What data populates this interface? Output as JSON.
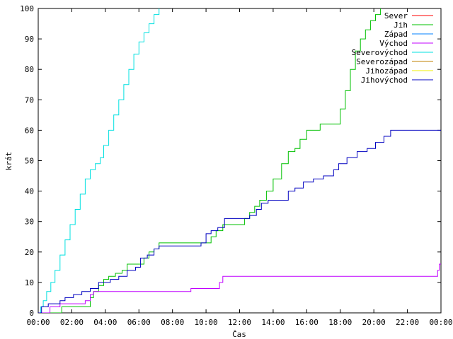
{
  "chart_data": {
    "type": "line",
    "title": "",
    "xlabel": "Čas",
    "ylabel": "krát",
    "xlim": [
      0,
      24
    ],
    "ylim": [
      0,
      100
    ],
    "x_ticks": [
      "00:00",
      "02:00",
      "04:00",
      "06:00",
      "08:00",
      "10:00",
      "12:00",
      "14:00",
      "16:00",
      "18:00",
      "20:00",
      "22:00",
      "00:00"
    ],
    "y_ticks": [
      0,
      10,
      20,
      30,
      40,
      50,
      60,
      70,
      80,
      90,
      100
    ],
    "legend_position": "top-right",
    "series": [
      {
        "name": "Sever",
        "color": "#ff0000",
        "points": []
      },
      {
        "name": "Jih",
        "color": "#00c000",
        "points": [
          [
            0.0,
            0
          ],
          [
            1.2,
            0
          ],
          [
            1.4,
            2
          ],
          [
            2.8,
            2
          ],
          [
            3.1,
            5
          ],
          [
            3.3,
            7
          ],
          [
            3.6,
            9
          ],
          [
            3.9,
            11
          ],
          [
            4.2,
            12
          ],
          [
            4.6,
            13
          ],
          [
            5.0,
            14
          ],
          [
            5.3,
            16
          ],
          [
            6.0,
            16
          ],
          [
            6.3,
            18
          ],
          [
            6.6,
            20
          ],
          [
            6.9,
            21
          ],
          [
            7.2,
            23
          ],
          [
            10.0,
            23
          ],
          [
            10.3,
            25
          ],
          [
            10.6,
            27
          ],
          [
            11.0,
            29
          ],
          [
            12.0,
            29
          ],
          [
            12.3,
            31
          ],
          [
            12.6,
            33
          ],
          [
            12.9,
            35
          ],
          [
            13.2,
            37
          ],
          [
            13.6,
            40
          ],
          [
            14.0,
            44
          ],
          [
            14.5,
            49
          ],
          [
            14.9,
            53
          ],
          [
            15.3,
            54
          ],
          [
            15.6,
            57
          ],
          [
            16.0,
            60
          ],
          [
            16.6,
            60
          ],
          [
            16.8,
            62
          ],
          [
            17.7,
            62
          ],
          [
            18.0,
            67
          ],
          [
            18.3,
            73
          ],
          [
            18.6,
            80
          ],
          [
            18.9,
            86
          ],
          [
            19.2,
            90
          ],
          [
            19.5,
            93
          ],
          [
            19.8,
            96
          ],
          [
            20.1,
            98
          ],
          [
            20.4,
            100
          ]
        ]
      },
      {
        "name": "Západ",
        "color": "#0080ff",
        "points": []
      },
      {
        "name": "Východ",
        "color": "#c000ff",
        "points": [
          [
            0.0,
            0
          ],
          [
            0.5,
            0
          ],
          [
            0.7,
            2
          ],
          [
            1.3,
            3
          ],
          [
            2.8,
            4
          ],
          [
            3.1,
            6
          ],
          [
            3.3,
            7
          ],
          [
            8.9,
            7
          ],
          [
            9.1,
            8
          ],
          [
            10.7,
            8
          ],
          [
            10.8,
            10
          ],
          [
            11.0,
            12
          ],
          [
            23.7,
            12
          ],
          [
            23.8,
            14
          ],
          [
            23.9,
            16
          ],
          [
            24.0,
            16
          ]
        ]
      },
      {
        "name": "Severovýchod",
        "color": "#00e0e0",
        "points": [
          [
            0.0,
            0
          ],
          [
            0.15,
            2
          ],
          [
            0.3,
            4
          ],
          [
            0.5,
            7
          ],
          [
            0.75,
            10
          ],
          [
            1.0,
            14
          ],
          [
            1.3,
            19
          ],
          [
            1.6,
            24
          ],
          [
            1.9,
            29
          ],
          [
            2.2,
            34
          ],
          [
            2.5,
            39
          ],
          [
            2.8,
            44
          ],
          [
            3.1,
            47
          ],
          [
            3.4,
            49
          ],
          [
            3.7,
            51
          ],
          [
            3.9,
            55
          ],
          [
            4.2,
            60
          ],
          [
            4.5,
            65
          ],
          [
            4.8,
            70
          ],
          [
            5.1,
            75
          ],
          [
            5.4,
            80
          ],
          [
            5.7,
            85
          ],
          [
            6.0,
            89
          ],
          [
            6.3,
            92
          ],
          [
            6.6,
            95
          ],
          [
            6.9,
            98
          ],
          [
            7.2,
            100
          ]
        ]
      },
      {
        "name": "Severozápad",
        "color": "#c08000",
        "points": []
      },
      {
        "name": "Jihozápad",
        "color": "#f0f000",
        "points": []
      },
      {
        "name": "Jihovýchod",
        "color": "#0000c0",
        "points": [
          [
            0.0,
            0
          ],
          [
            0.2,
            2
          ],
          [
            0.6,
            3
          ],
          [
            1.3,
            4
          ],
          [
            1.6,
            5
          ],
          [
            2.1,
            6
          ],
          [
            2.6,
            7
          ],
          [
            3.1,
            8
          ],
          [
            3.6,
            10
          ],
          [
            4.3,
            11
          ],
          [
            4.8,
            12
          ],
          [
            5.3,
            14
          ],
          [
            5.8,
            15
          ],
          [
            6.1,
            18
          ],
          [
            6.5,
            19
          ],
          [
            6.9,
            21
          ],
          [
            7.2,
            22
          ],
          [
            9.7,
            23
          ],
          [
            10.0,
            26
          ],
          [
            10.3,
            27
          ],
          [
            10.7,
            28
          ],
          [
            11.1,
            31
          ],
          [
            12.2,
            31
          ],
          [
            12.6,
            32
          ],
          [
            13.0,
            34
          ],
          [
            13.3,
            36
          ],
          [
            13.7,
            37
          ],
          [
            14.5,
            37
          ],
          [
            14.9,
            40
          ],
          [
            15.3,
            41
          ],
          [
            15.8,
            43
          ],
          [
            16.4,
            44
          ],
          [
            17.0,
            45
          ],
          [
            17.6,
            47
          ],
          [
            17.9,
            49
          ],
          [
            18.4,
            51
          ],
          [
            19.0,
            53
          ],
          [
            19.6,
            54
          ],
          [
            20.1,
            56
          ],
          [
            20.6,
            58
          ],
          [
            21.0,
            60
          ],
          [
            24.0,
            60
          ]
        ]
      }
    ]
  }
}
